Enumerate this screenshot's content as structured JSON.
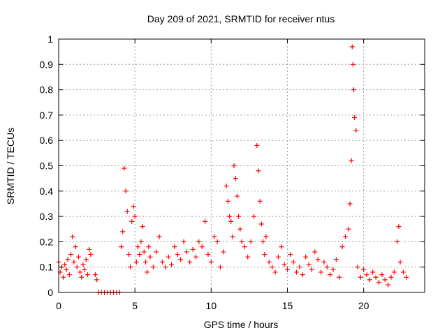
{
  "chart_data": {
    "type": "scatter",
    "title": "Day 209 of 2021, SRMTID for receiver ntus",
    "xlabel": "GPS time / hours",
    "ylabel": "SRMTID / TECUs",
    "xlim": [
      0,
      24
    ],
    "ylim": [
      0,
      1
    ],
    "xticks": [
      0,
      5,
      10,
      15,
      20
    ],
    "xtick_labels": [
      "0",
      "5",
      "10",
      "15",
      "20"
    ],
    "yticks": [
      0,
      0.1,
      0.2,
      0.3,
      0.4,
      0.5,
      0.6,
      0.7,
      0.8,
      0.9,
      1
    ],
    "ytick_labels": [
      "0",
      "0.1",
      "0.2",
      "0.3",
      "0.4",
      "0.5",
      "0.6",
      "0.7",
      "0.8",
      "0.9",
      "1"
    ],
    "grid": true,
    "marker": "+",
    "marker_color": "#ff0000",
    "series": [
      {
        "name": "SRMTID",
        "color": "#ff0000",
        "x": [
          0.0,
          0.1,
          0.2,
          0.3,
          0.4,
          0.5,
          0.6,
          0.7,
          0.8,
          0.9,
          1.0,
          1.1,
          1.2,
          1.3,
          1.4,
          1.5,
          1.6,
          1.7,
          1.8,
          1.9,
          2.0,
          2.1,
          2.4,
          2.5,
          2.6,
          2.8,
          3.0,
          3.2,
          3.4,
          3.6,
          3.8,
          4.0,
          4.1,
          4.2,
          4.3,
          4.4,
          4.5,
          4.6,
          4.7,
          4.8,
          4.9,
          5.0,
          5.1,
          5.2,
          5.3,
          5.4,
          5.5,
          5.6,
          5.7,
          5.8,
          5.9,
          6.0,
          6.2,
          6.4,
          6.6,
          6.8,
          7.0,
          7.2,
          7.4,
          7.6,
          7.8,
          8.0,
          8.2,
          8.4,
          8.6,
          8.8,
          9.0,
          9.2,
          9.4,
          9.6,
          9.8,
          10.0,
          10.2,
          10.4,
          10.6,
          10.8,
          11.0,
          11.1,
          11.2,
          11.3,
          11.4,
          11.5,
          11.6,
          11.7,
          11.8,
          11.9,
          12.0,
          12.2,
          12.4,
          12.6,
          12.8,
          13.0,
          13.1,
          13.2,
          13.3,
          13.4,
          13.5,
          13.6,
          13.8,
          14.0,
          14.2,
          14.4,
          14.6,
          14.8,
          15.0,
          15.2,
          15.4,
          15.6,
          15.8,
          16.0,
          16.2,
          16.4,
          16.6,
          16.8,
          17.0,
          17.2,
          17.4,
          17.6,
          17.8,
          18.0,
          18.2,
          18.4,
          18.6,
          18.8,
          19.0,
          19.1,
          19.2,
          19.25,
          19.3,
          19.35,
          19.4,
          19.5,
          19.6,
          19.8,
          20.0,
          20.2,
          20.4,
          20.6,
          20.8,
          21.0,
          21.2,
          21.4,
          21.6,
          21.8,
          22.0,
          22.2,
          22.3,
          22.4,
          22.6,
          22.8
        ],
        "y": [
          0.12,
          0.08,
          0.1,
          0.06,
          0.11,
          0.09,
          0.13,
          0.07,
          0.15,
          0.22,
          0.12,
          0.18,
          0.1,
          0.14,
          0.08,
          0.06,
          0.11,
          0.09,
          0.13,
          0.07,
          0.17,
          0.15,
          0.07,
          0.05,
          0.0,
          0.0,
          0.0,
          0.0,
          0.0,
          0.0,
          0.0,
          0.0,
          0.18,
          0.24,
          0.49,
          0.4,
          0.32,
          0.15,
          0.1,
          0.28,
          0.34,
          0.3,
          0.12,
          0.18,
          0.15,
          0.2,
          0.26,
          0.16,
          0.12,
          0.08,
          0.18,
          0.14,
          0.1,
          0.16,
          0.22,
          0.12,
          0.1,
          0.14,
          0.11,
          0.18,
          0.15,
          0.13,
          0.2,
          0.16,
          0.12,
          0.17,
          0.14,
          0.2,
          0.18,
          0.28,
          0.15,
          0.12,
          0.22,
          0.2,
          0.1,
          0.16,
          0.42,
          0.36,
          0.3,
          0.28,
          0.22,
          0.5,
          0.45,
          0.38,
          0.3,
          0.25,
          0.2,
          0.18,
          0.14,
          0.2,
          0.3,
          0.58,
          0.48,
          0.36,
          0.27,
          0.2,
          0.15,
          0.22,
          0.12,
          0.1,
          0.08,
          0.14,
          0.18,
          0.11,
          0.09,
          0.15,
          0.12,
          0.08,
          0.1,
          0.07,
          0.14,
          0.11,
          0.09,
          0.16,
          0.13,
          0.08,
          0.12,
          0.1,
          0.07,
          0.09,
          0.13,
          0.06,
          0.18,
          0.22,
          0.25,
          0.35,
          0.52,
          0.97,
          0.9,
          0.8,
          0.69,
          0.64,
          0.1,
          0.06,
          0.09,
          0.07,
          0.05,
          0.08,
          0.06,
          0.04,
          0.07,
          0.05,
          0.03,
          0.06,
          0.08,
          0.2,
          0.26,
          0.12,
          0.08,
          0.06
        ]
      }
    ]
  }
}
